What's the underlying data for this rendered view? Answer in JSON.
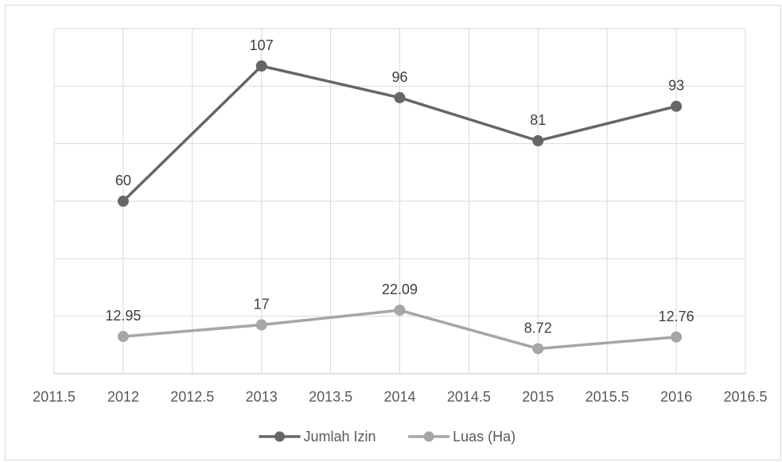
{
  "chart_data": {
    "type": "line",
    "title": "",
    "xlabel": "",
    "ylabel": "",
    "xlim": [
      2011.5,
      2016.5
    ],
    "ylim": [
      0,
      120
    ],
    "y_grid_step": 20,
    "x_tick_labels": [
      "2011.5",
      "2012",
      "2012.5",
      "2013",
      "2013.5",
      "2014",
      "2014.5",
      "2015",
      "2015.5",
      "2016",
      "2016.5"
    ],
    "x_ticks": [
      2011.5,
      2012,
      2012.5,
      2013,
      2013.5,
      2014,
      2014.5,
      2015,
      2015.5,
      2016,
      2016.5
    ],
    "y_tick_labels_visible": false,
    "grid": true,
    "legend_position": "bottom",
    "series": [
      {
        "name": "Jumlah Izin",
        "color": "#666666",
        "x": [
          2012,
          2013,
          2014,
          2015,
          2016
        ],
        "values": [
          60,
          107,
          96,
          81,
          93
        ],
        "labels": [
          "60",
          "107",
          "96",
          "81",
          "93"
        ]
      },
      {
        "name": "Luas (Ha)",
        "color": "#a6a6a6",
        "x": [
          2012,
          2013,
          2014,
          2015,
          2016
        ],
        "values": [
          12.95,
          17,
          22.09,
          8.72,
          12.76
        ],
        "labels": [
          "12.95",
          "17",
          "22.09",
          "8.72",
          "12.76"
        ]
      }
    ]
  }
}
